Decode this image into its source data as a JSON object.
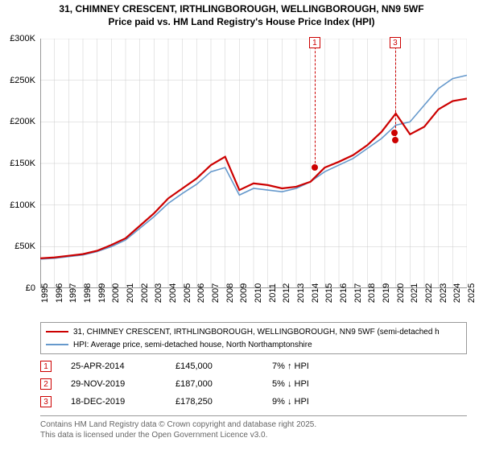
{
  "title": {
    "line1": "31, CHIMNEY CRESCENT, IRTHLINGBOROUGH, WELLINGBOROUGH, NN9 5WF",
    "line2": "Price paid vs. HM Land Registry's House Price Index (HPI)"
  },
  "chart": {
    "type": "line",
    "background_color": "#ffffff",
    "grid_color": "#cccccc",
    "axis_color": "#333333",
    "x_years": [
      1995,
      1996,
      1997,
      1998,
      1999,
      2000,
      2001,
      2002,
      2003,
      2004,
      2005,
      2006,
      2007,
      2008,
      2009,
      2010,
      2011,
      2012,
      2013,
      2014,
      2015,
      2016,
      2017,
      2018,
      2019,
      2020,
      2021,
      2022,
      2023,
      2024,
      2025
    ],
    "ylim": [
      0,
      300
    ],
    "ytick_step": 50,
    "ytick_labels": [
      "£0",
      "£50K",
      "£100K",
      "£150K",
      "£200K",
      "£250K",
      "£300K"
    ],
    "series": [
      {
        "name": "price_paid",
        "label": "31, CHIMNEY CRESCENT, IRTHLINGBOROUGH, WELLINGBOROUGH, NN9 5WF (semi-detached h",
        "color": "#cc0000",
        "line_width": 2.2,
        "values": [
          36,
          37,
          39,
          41,
          45,
          52,
          60,
          75,
          90,
          108,
          120,
          132,
          148,
          158,
          118,
          126,
          124,
          120,
          122,
          128,
          145,
          152,
          160,
          172,
          188,
          210,
          185,
          194,
          215,
          225,
          228
        ]
      },
      {
        "name": "hpi",
        "label": "HPI: Average price, semi-detached house, North Northamptonshire",
        "color": "#6699cc",
        "line_width": 1.6,
        "values": [
          35,
          36,
          38,
          40,
          44,
          50,
          58,
          72,
          86,
          102,
          114,
          125,
          140,
          145,
          112,
          120,
          118,
          116,
          120,
          128,
          140,
          148,
          156,
          168,
          180,
          196,
          200,
          220,
          240,
          252,
          256
        ]
      }
    ],
    "markers": [
      {
        "num": "1",
        "year": 2014.3,
        "value": 145
      },
      {
        "num": "2",
        "year": 2019.9,
        "value": 187
      },
      {
        "num": "3",
        "year": 2019.96,
        "value": 178
      }
    ]
  },
  "transactions": [
    {
      "num": "1",
      "date": "25-APR-2014",
      "price": "£145,000",
      "delta": "7% ↑ HPI"
    },
    {
      "num": "2",
      "date": "29-NOV-2019",
      "price": "£187,000",
      "delta": "5% ↓ HPI"
    },
    {
      "num": "3",
      "date": "18-DEC-2019",
      "price": "£178,250",
      "delta": "9% ↓ HPI"
    }
  ],
  "transaction_marker_color": "#cc0000",
  "footer": {
    "line1": "Contains HM Land Registry data © Crown copyright and database right 2025.",
    "line2": "This data is licensed under the Open Government Licence v3.0."
  }
}
